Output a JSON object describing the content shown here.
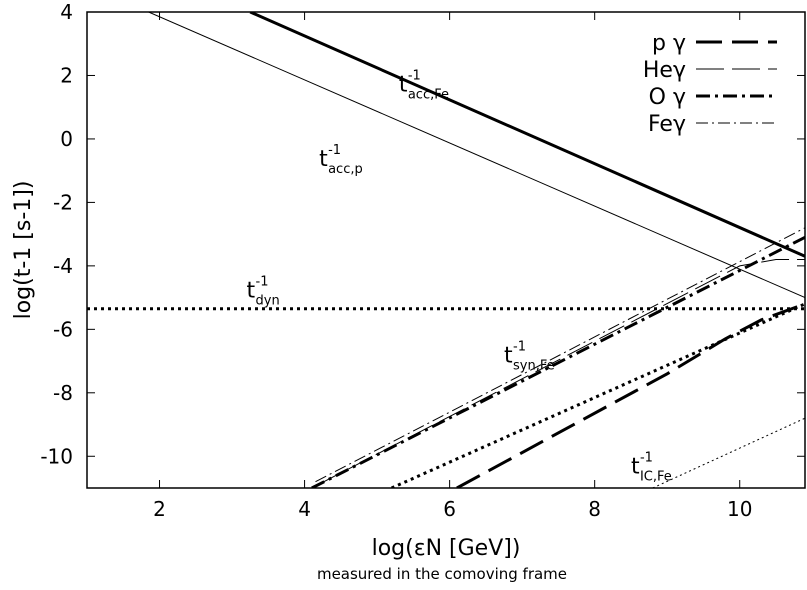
{
  "chart_data": {
    "type": "line",
    "xlabel": "log(εN [GeV])",
    "subtitle": "measured in the comoving frame",
    "ylabel": "log(t-1 [s-1])",
    "xlim": [
      1,
      10.9
    ],
    "ylim": [
      -11,
      4
    ],
    "x_ticks": [
      2,
      4,
      6,
      8,
      10
    ],
    "x_tick_labels": [
      "2",
      "4",
      "6",
      "8",
      "10"
    ],
    "y_ticks": [
      4,
      2,
      0,
      -2,
      -4,
      -6,
      -8,
      -10
    ],
    "y_tick_labels": [
      "4",
      "2",
      "0",
      "-2",
      "-4",
      "-6",
      "-8",
      "-10"
    ],
    "legend_position": "top-right",
    "legend": [
      {
        "label": "p γ",
        "style": "long-dash",
        "width": 3
      },
      {
        "label": "Heγ",
        "style": "long-dash",
        "width": 1
      },
      {
        "label": "O γ",
        "style": "dash-dot",
        "width": 3
      },
      {
        "label": "Feγ",
        "style": "dash-dot",
        "width": 1
      }
    ],
    "series": [
      {
        "name": "p γ",
        "style": "long-dash",
        "width": 3,
        "points": [
          [
            6.1,
            -11
          ],
          [
            9.0,
            -7.4
          ],
          [
            9.8,
            -6.3
          ],
          [
            10.3,
            -5.7
          ],
          [
            10.9,
            -5.2
          ]
        ]
      },
      {
        "name": "Heγ",
        "style": "long-dash",
        "width": 1,
        "points": [
          [
            4.1,
            -11
          ],
          [
            10.0,
            -4.0
          ],
          [
            10.5,
            -3.8
          ],
          [
            10.9,
            -3.8
          ]
        ]
      },
      {
        "name": "O γ",
        "style": "dash-dot",
        "width": 3,
        "points": [
          [
            4.1,
            -11
          ],
          [
            10.9,
            -3.1
          ]
        ]
      },
      {
        "name": "Feγ",
        "style": "dash-dot",
        "width": 1,
        "points": [
          [
            4.15,
            -10.8
          ],
          [
            10.9,
            -2.8
          ]
        ]
      },
      {
        "label_main": "t",
        "label_sup": "-1",
        "label_sub": "acc,Fe",
        "label_at": [
          5.3,
          1.5
        ],
        "style": "solid",
        "width": 3,
        "points": [
          [
            3.25,
            4
          ],
          [
            10.9,
            -3.7
          ]
        ]
      },
      {
        "label_main": "t",
        "label_sup": "-1",
        "label_sub": "acc,p",
        "label_at": [
          4.2,
          -0.85
        ],
        "style": "solid",
        "width": 1,
        "points": [
          [
            1.85,
            4
          ],
          [
            10.9,
            -5.0
          ]
        ]
      },
      {
        "label_main": "t",
        "label_sup": "-1",
        "label_sub": "dyn",
        "label_at": [
          3.2,
          -5.0
        ],
        "style": "dotted",
        "width": 3,
        "points": [
          [
            1,
            -5.35
          ],
          [
            10.9,
            -5.35
          ]
        ]
      },
      {
        "label_main": "t",
        "label_sup": "-1",
        "label_sub": "syn,Fe",
        "label_at": [
          6.75,
          -7.05
        ],
        "style": "dotted",
        "width": 3,
        "points": [
          [
            5.2,
            -11
          ],
          [
            10.9,
            -5.2
          ]
        ]
      },
      {
        "label_main": "t",
        "label_sup": "-1",
        "label_sub": "IC,Fe",
        "label_at": [
          8.5,
          -10.55
        ],
        "style": "dotted",
        "width": 1,
        "points": [
          [
            8.8,
            -11
          ],
          [
            10.9,
            -8.8
          ]
        ]
      }
    ]
  }
}
